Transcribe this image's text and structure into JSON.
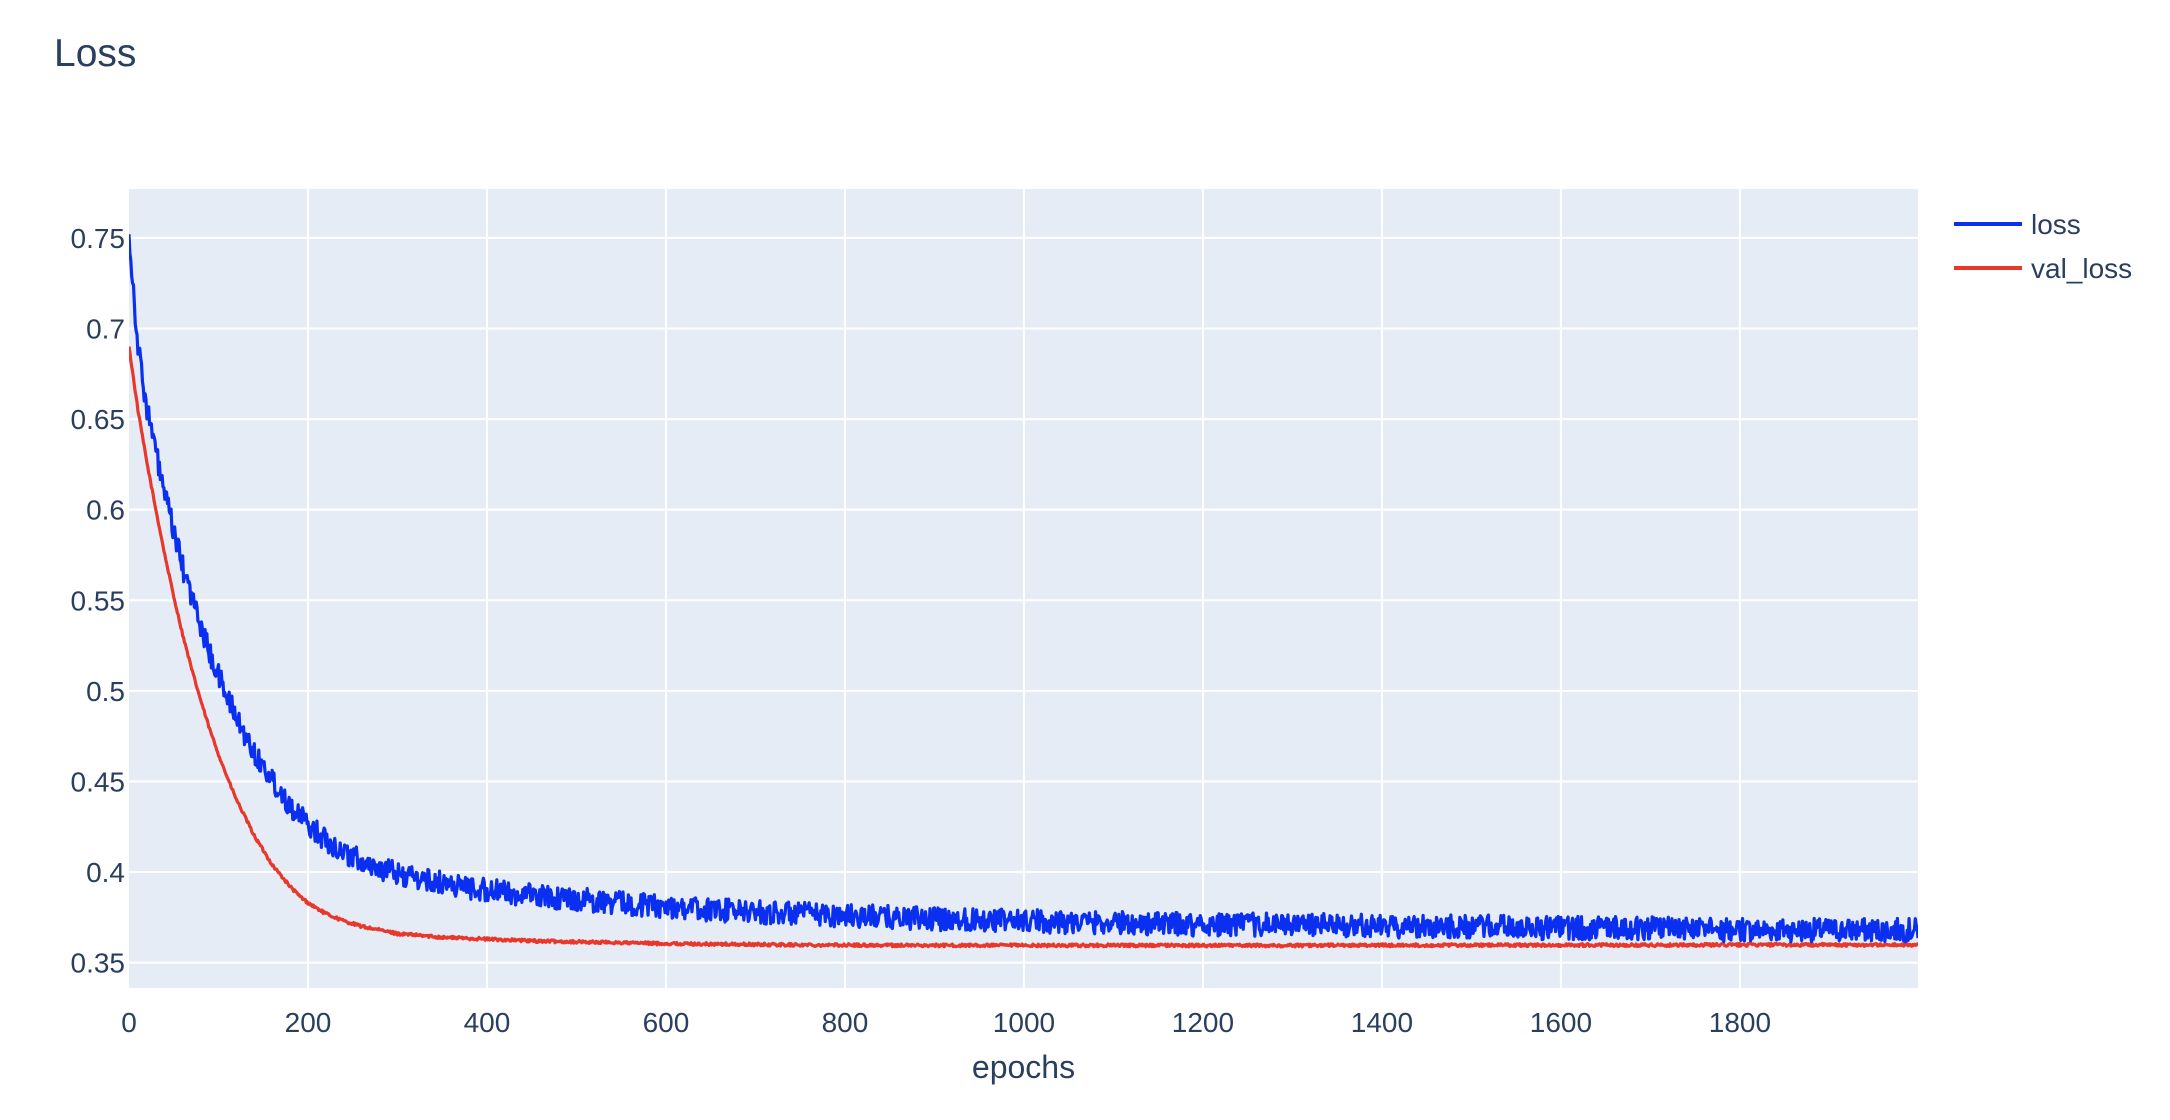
{
  "chart_data": {
    "type": "line",
    "title": "Loss",
    "xlabel": "epochs",
    "ylabel": "",
    "xlim": [
      0,
      1999
    ],
    "ylim": [
      0.336,
      0.777
    ],
    "xticks": [
      0,
      200,
      400,
      600,
      800,
      1000,
      1200,
      1400,
      1600,
      1800
    ],
    "xtick_labels": [
      "0",
      "200",
      "400",
      "600",
      "800",
      "1000",
      "1200",
      "1400",
      "1600",
      "1800"
    ],
    "yticks": [
      0.35,
      0.4,
      0.45,
      0.5,
      0.55,
      0.6,
      0.65,
      0.7,
      0.75
    ],
    "ytick_labels": [
      "0.35",
      "0.4",
      "0.45",
      "0.5",
      "0.55",
      "0.6",
      "0.65",
      "0.7",
      "0.75"
    ],
    "grid": true,
    "legend_position": "top-right",
    "plot_background": "#e5ecf6",
    "grid_color": "#ffffff",
    "x": [
      0,
      10,
      20,
      30,
      40,
      50,
      60,
      70,
      80,
      90,
      100,
      110,
      120,
      130,
      140,
      150,
      160,
      170,
      180,
      190,
      200,
      220,
      240,
      260,
      280,
      300,
      325,
      350,
      375,
      400,
      450,
      500,
      550,
      600,
      650,
      700,
      750,
      800,
      850,
      900,
      950,
      1000,
      1100,
      1200,
      1300,
      1400,
      1500,
      1600,
      1700,
      1800,
      1900,
      1999
    ],
    "series": [
      {
        "name": "loss",
        "color": "#0a2ff0",
        "noise": 0.0065,
        "values": [
          0.752,
          0.69,
          0.656,
          0.632,
          0.608,
          0.588,
          0.568,
          0.552,
          0.536,
          0.521,
          0.508,
          0.497,
          0.485,
          0.475,
          0.466,
          0.458,
          0.451,
          0.444,
          0.437,
          0.431,
          0.426,
          0.418,
          0.411,
          0.406,
          0.402,
          0.399,
          0.396,
          0.394,
          0.392,
          0.39,
          0.387,
          0.385,
          0.383,
          0.381,
          0.379,
          0.378,
          0.377,
          0.376,
          0.375,
          0.374,
          0.374,
          0.373,
          0.372,
          0.371,
          0.371,
          0.37,
          0.37,
          0.369,
          0.369,
          0.368,
          0.368,
          0.368
        ]
      },
      {
        "name": "val_loss",
        "color": "#e8382b",
        "noise": 0.0008,
        "values": [
          0.69,
          0.655,
          0.626,
          0.6,
          0.575,
          0.552,
          0.531,
          0.512,
          0.495,
          0.479,
          0.465,
          0.452,
          0.44,
          0.43,
          0.42,
          0.412,
          0.404,
          0.398,
          0.392,
          0.387,
          0.383,
          0.377,
          0.373,
          0.37,
          0.368,
          0.366,
          0.365,
          0.364,
          0.3635,
          0.363,
          0.362,
          0.3615,
          0.361,
          0.3605,
          0.3602,
          0.36,
          0.3598,
          0.3597,
          0.3596,
          0.3595,
          0.3595,
          0.3595,
          0.3595,
          0.3595,
          0.3595,
          0.3596,
          0.3596,
          0.3597,
          0.3597,
          0.3598,
          0.3598,
          0.3598
        ]
      }
    ]
  }
}
